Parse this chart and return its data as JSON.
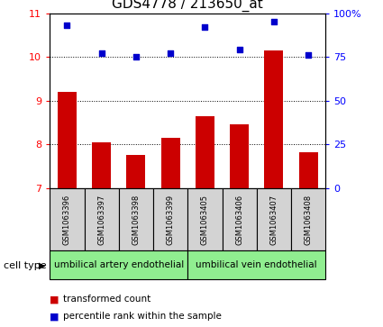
{
  "title": "GDS4778 / 213650_at",
  "samples": [
    "GSM1063396",
    "GSM1063397",
    "GSM1063398",
    "GSM1063399",
    "GSM1063405",
    "GSM1063406",
    "GSM1063407",
    "GSM1063408"
  ],
  "bar_values": [
    9.2,
    8.05,
    7.75,
    8.15,
    8.65,
    8.45,
    10.15,
    7.82
  ],
  "dot_values": [
    93,
    77,
    75,
    77,
    92,
    79,
    95,
    76
  ],
  "ylim_left": [
    7,
    11
  ],
  "ylim_right": [
    0,
    100
  ],
  "yticks_left": [
    7,
    8,
    9,
    10,
    11
  ],
  "yticks_right": [
    0,
    25,
    50,
    75,
    100
  ],
  "yticklabels_right": [
    "0",
    "25",
    "50",
    "75",
    "100%"
  ],
  "bar_color": "#cc0000",
  "dot_color": "#0000cc",
  "bar_width": 0.55,
  "cell_type_groups": [
    {
      "label": "umbilical artery endothelial",
      "start": 0,
      "end": 4,
      "color": "#90ee90"
    },
    {
      "label": "umbilical vein endothelial",
      "start": 4,
      "end": 8,
      "color": "#90ee90"
    }
  ],
  "sample_box_color": "#d3d3d3",
  "cell_type_label": "cell type",
  "legend_bar_label": "transformed count",
  "legend_dot_label": "percentile rank within the sample",
  "title_fontsize": 11,
  "tick_fontsize": 8,
  "sample_fontsize": 6,
  "cell_fontsize": 7.5,
  "legend_fontsize": 7.5
}
